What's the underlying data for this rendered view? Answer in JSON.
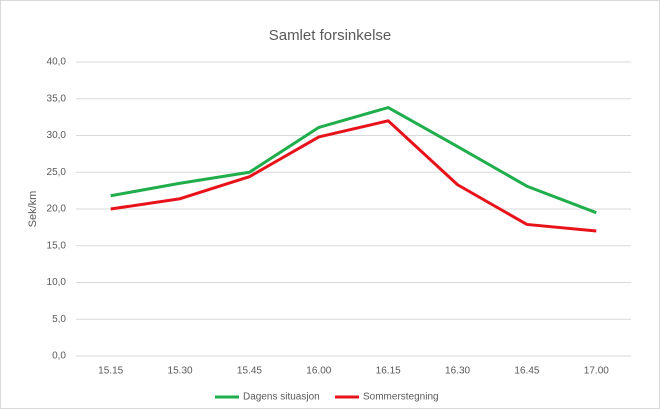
{
  "chart_data": {
    "type": "line",
    "title": "Samlet forsinkelse",
    "y_label": "Sek/km",
    "categories": [
      "15.15",
      "15.30",
      "15.45",
      "16.00",
      "16.15",
      "16.30",
      "16.45",
      "17.00"
    ],
    "series": [
      {
        "name": "Dagens situasjon",
        "color": "#1fae4b",
        "values": [
          21.8,
          23.5,
          25.0,
          31.1,
          33.8,
          28.5,
          23.1,
          19.5
        ]
      },
      {
        "name": "Sommerstegning",
        "color": "#e8131a",
        "values": [
          20.0,
          21.4,
          24.4,
          29.8,
          32.0,
          23.3,
          17.9,
          17.0
        ]
      }
    ],
    "ylim": [
      0,
      40
    ],
    "yticks": [
      {
        "value": 0,
        "label": "0,0"
      },
      {
        "value": 5,
        "label": "5,0"
      },
      {
        "value": 10,
        "label": "10,0"
      },
      {
        "value": 15,
        "label": "15,0"
      },
      {
        "value": 20,
        "label": "20,0"
      },
      {
        "value": 25,
        "label": "25,0"
      },
      {
        "value": 30,
        "label": "30,0"
      },
      {
        "value": 35,
        "label": "35,0"
      },
      {
        "value": 40,
        "label": "40,0"
      }
    ],
    "grid": true,
    "legend": "bottom"
  }
}
